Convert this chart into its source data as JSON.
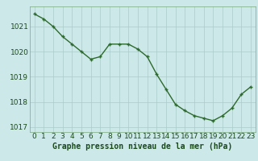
{
  "x": [
    0,
    1,
    2,
    3,
    4,
    5,
    6,
    7,
    8,
    9,
    10,
    11,
    12,
    13,
    14,
    15,
    16,
    17,
    18,
    19,
    20,
    21,
    22,
    23
  ],
  "y": [
    1021.5,
    1021.3,
    1021.0,
    1020.6,
    1020.3,
    1020.0,
    1019.7,
    1019.8,
    1020.3,
    1020.3,
    1020.3,
    1020.1,
    1019.8,
    1019.1,
    1018.5,
    1017.9,
    1017.65,
    1017.45,
    1017.35,
    1017.25,
    1017.45,
    1017.75,
    1018.3,
    1018.6
  ],
  "line_color": "#2d6a2d",
  "marker": "+",
  "marker_size": 3.5,
  "line_width": 1.0,
  "bg_color": "#cce8e8",
  "grid_color": "#aacccc",
  "ylabel_ticks": [
    1017,
    1018,
    1019,
    1020,
    1021
  ],
  "xlim": [
    -0.5,
    23.5
  ],
  "ylim": [
    1016.8,
    1021.8
  ],
  "xlabel": "Graphe pression niveau de la mer (hPa)",
  "xlabel_fontsize": 7,
  "tick_fontsize": 6.5,
  "xlabel_color": "#1a4a1a",
  "tick_color": "#1a4a1a",
  "spine_color": "#7aaa7a"
}
